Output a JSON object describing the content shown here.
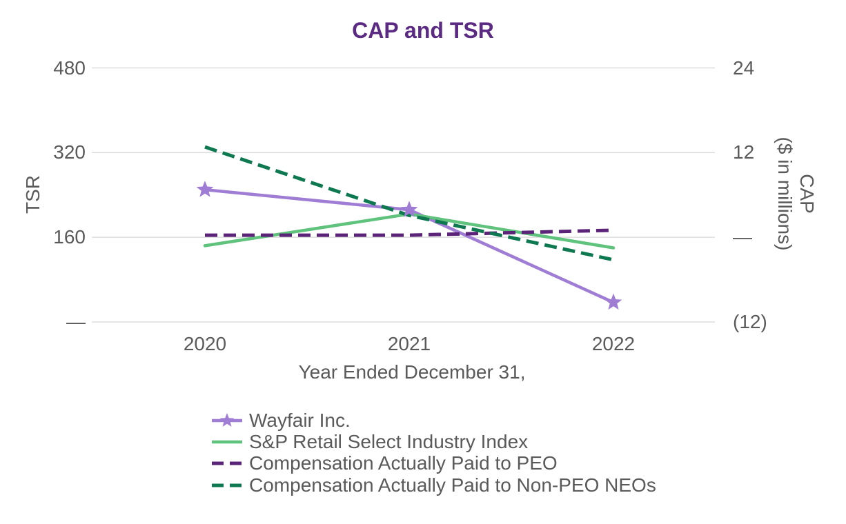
{
  "chart_data": {
    "type": "line",
    "title": "CAP and TSR",
    "grid": true,
    "legend_position": "bottom",
    "x_axis": {
      "title": "Year Ended December 31,",
      "tick_labels": [
        "2020",
        "2021",
        "2022"
      ]
    },
    "left_axis": {
      "title": "TSR",
      "tick_labels": [
        "480",
        "320",
        "160",
        "—"
      ],
      "tick_values": [
        480,
        320,
        160,
        0
      ],
      "range": [
        0,
        480
      ]
    },
    "right_axis": {
      "title_line1": "CAP",
      "title_line2": "($ in millions)",
      "tick_labels": [
        "24",
        "12",
        "—",
        "(12)"
      ],
      "tick_values": [
        24,
        12,
        0,
        -12
      ],
      "range": [
        -12,
        24
      ]
    },
    "categories": [
      "2020",
      "2021",
      "2022"
    ],
    "series": [
      {
        "name": "Wayfair Inc.",
        "axis": "left",
        "color": "#a07dd5",
        "style": "solid",
        "marker": "star",
        "values": [
          250,
          212,
          37
        ]
      },
      {
        "name": "S&P Retail Select Industry Index",
        "axis": "left",
        "color": "#5fc27d",
        "style": "solid",
        "marker": "none",
        "values": [
          144,
          204,
          140
        ]
      },
      {
        "name": "Compensation Actually Paid to PEO",
        "axis": "right",
        "color": "#5b2478",
        "style": "dashed",
        "marker": "none",
        "values": [
          0.3,
          0.3,
          1.0
        ]
      },
      {
        "name": "Compensation Actually Paid to Non-PEO NEOs",
        "axis": "right",
        "color": "#0e7950",
        "style": "dashed",
        "marker": "none",
        "values": [
          12.8,
          3.1,
          -3.2
        ]
      }
    ],
    "accent_colors": {
      "title": "#5b2a82",
      "axis_text": "#5a5a5a",
      "gridline": "#dddddd"
    }
  }
}
